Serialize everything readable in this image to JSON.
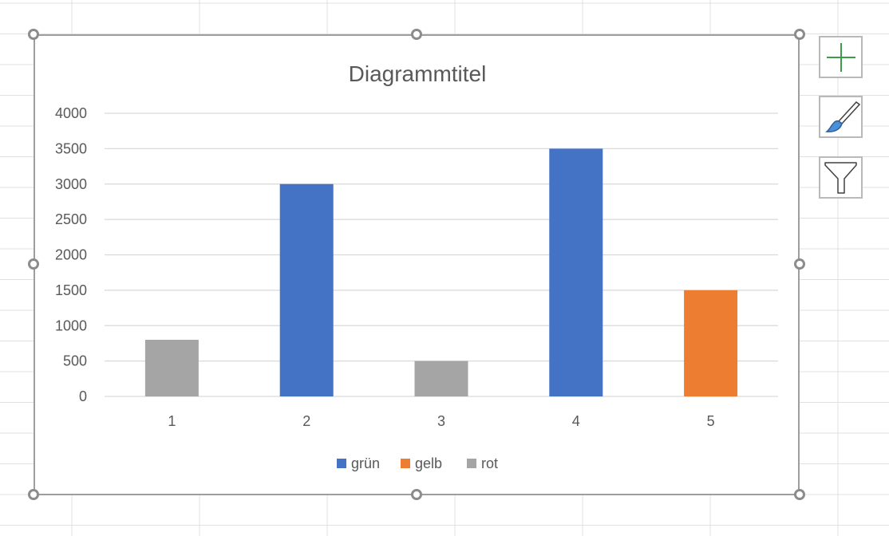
{
  "chart_data": {
    "type": "bar",
    "title": "Diagrammtitel",
    "categories": [
      "1",
      "2",
      "3",
      "4",
      "5"
    ],
    "bars": [
      {
        "category": "1",
        "value": 800,
        "series": "rot"
      },
      {
        "category": "2",
        "value": 3000,
        "series": "grün"
      },
      {
        "category": "3",
        "value": 500,
        "series": "rot"
      },
      {
        "category": "4",
        "value": 3500,
        "series": "grün"
      },
      {
        "category": "5",
        "value": 1500,
        "series": "gelb"
      }
    ],
    "series": [
      {
        "name": "grün",
        "color": "#4472c4"
      },
      {
        "name": "gelb",
        "color": "#ed7d31"
      },
      {
        "name": "rot",
        "color": "#a5a5a5"
      }
    ],
    "yticks": [
      "0",
      "500",
      "1000",
      "1500",
      "2000",
      "2500",
      "3000",
      "3500",
      "4000"
    ],
    "ylim": [
      0,
      4000
    ],
    "grid": true,
    "legend_position": "bottom"
  },
  "side_buttons": {
    "add_elements_icon": "plus-icon",
    "styles_icon": "paintbrush-icon",
    "filter_icon": "funnel-icon"
  }
}
